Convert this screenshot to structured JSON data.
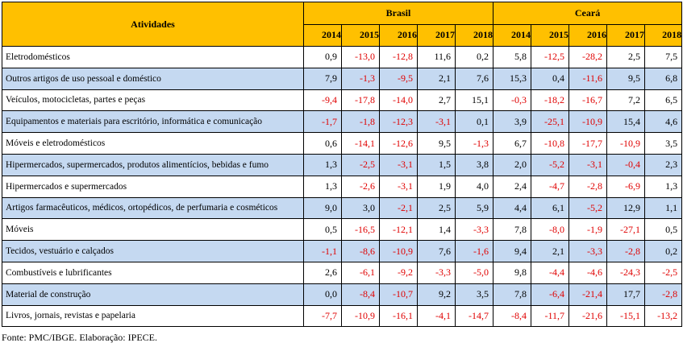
{
  "table": {
    "header": {
      "activities": "Atividades",
      "groups": [
        "Brasil",
        "Ceará"
      ],
      "years": [
        "2014",
        "2015",
        "2016",
        "2017",
        "2018"
      ]
    },
    "colors": {
      "header_bg": "#ffc000",
      "shade_bg": "#c5d9f1",
      "negative": "#e00000"
    },
    "rows": [
      {
        "label": "Eletrodomésticos",
        "brasil": [
          "0,9",
          "-13,0",
          "-12,8",
          "11,6",
          "0,2"
        ],
        "ceara": [
          "5,8",
          "-12,5",
          "-28,2",
          "2,5",
          "7,5"
        ]
      },
      {
        "label": "Outros artigos de uso pessoal e doméstico",
        "brasil": [
          "7,9",
          "-1,3",
          "-9,5",
          "2,1",
          "7,6"
        ],
        "ceara": [
          "15,3",
          "0,4",
          "-11,6",
          "9,5",
          "6,8"
        ]
      },
      {
        "label": "Veículos, motocicletas, partes e peças",
        "brasil": [
          "-9,4",
          "-17,8",
          "-14,0",
          "2,7",
          "15,1"
        ],
        "ceara": [
          "-0,3",
          "-18,2",
          "-16,7",
          "7,2",
          "6,5"
        ]
      },
      {
        "label": "Equipamentos e materiais para escritório, informática e comunicação",
        "brasil": [
          "-1,7",
          "-1,8",
          "-12,3",
          "-3,1",
          "0,1"
        ],
        "ceara": [
          "3,9",
          "-25,1",
          "-10,9",
          "15,4",
          "4,6"
        ]
      },
      {
        "label": "Móveis e eletrodomésticos",
        "brasil": [
          "0,6",
          "-14,1",
          "-12,6",
          "9,5",
          "-1,3"
        ],
        "ceara": [
          "6,7",
          "-10,8",
          "-17,7",
          "-10,9",
          "3,5"
        ]
      },
      {
        "label": "Hipermercados, supermercados, produtos alimentícios, bebidas e fumo",
        "brasil": [
          "1,3",
          "-2,5",
          "-3,1",
          "1,5",
          "3,8"
        ],
        "ceara": [
          "2,0",
          "-5,2",
          "-3,1",
          "-0,4",
          "2,3"
        ]
      },
      {
        "label": "Hipermercados e supermercados",
        "brasil": [
          "1,3",
          "-2,6",
          "-3,1",
          "1,9",
          "4,0"
        ],
        "ceara": [
          "2,4",
          "-4,7",
          "-2,8",
          "-6,9",
          "1,3"
        ]
      },
      {
        "label": "Artigos farmacêuticos, médicos, ortopédicos, de perfumaria e cosméticos",
        "brasil": [
          "9,0",
          "3,0",
          "-2,1",
          "2,5",
          "5,9"
        ],
        "ceara": [
          "4,4",
          "6,1",
          "-5,2",
          "12,9",
          "1,1"
        ]
      },
      {
        "label": "Móveis",
        "brasil": [
          "0,5",
          "-16,5",
          "-12,1",
          "1,4",
          "-3,3"
        ],
        "ceara": [
          "7,8",
          "-8,0",
          "-1,9",
          "-27,1",
          "0,5"
        ]
      },
      {
        "label": "Tecidos, vestuário e calçados",
        "brasil": [
          "-1,1",
          "-8,6",
          "-10,9",
          "7,6",
          "-1,6"
        ],
        "ceara": [
          "9,4",
          "2,1",
          "-3,3",
          "-2,8",
          "0,2"
        ]
      },
      {
        "label": "Combustíveis e lubrificantes",
        "brasil": [
          "2,6",
          "-6,1",
          "-9,2",
          "-3,3",
          "-5,0"
        ],
        "ceara": [
          "9,8",
          "-4,4",
          "-4,6",
          "-24,3",
          "-2,5"
        ]
      },
      {
        "label": "Material de construção",
        "brasil": [
          "0,0",
          "-8,4",
          "-10,7",
          "9,2",
          "3,5"
        ],
        "ceara": [
          "7,8",
          "-6,4",
          "-21,4",
          "17,7",
          "-2,8"
        ]
      },
      {
        "label": "Livros, jornais, revistas e papelaria",
        "brasil": [
          "-7,7",
          "-10,9",
          "-16,1",
          "-4,1",
          "-14,7"
        ],
        "ceara": [
          "-8,4",
          "-11,7",
          "-21,6",
          "-15,1",
          "-13,2"
        ]
      }
    ]
  },
  "source": "Fonte: PMC/IBGE. Elaboração: IPECE."
}
